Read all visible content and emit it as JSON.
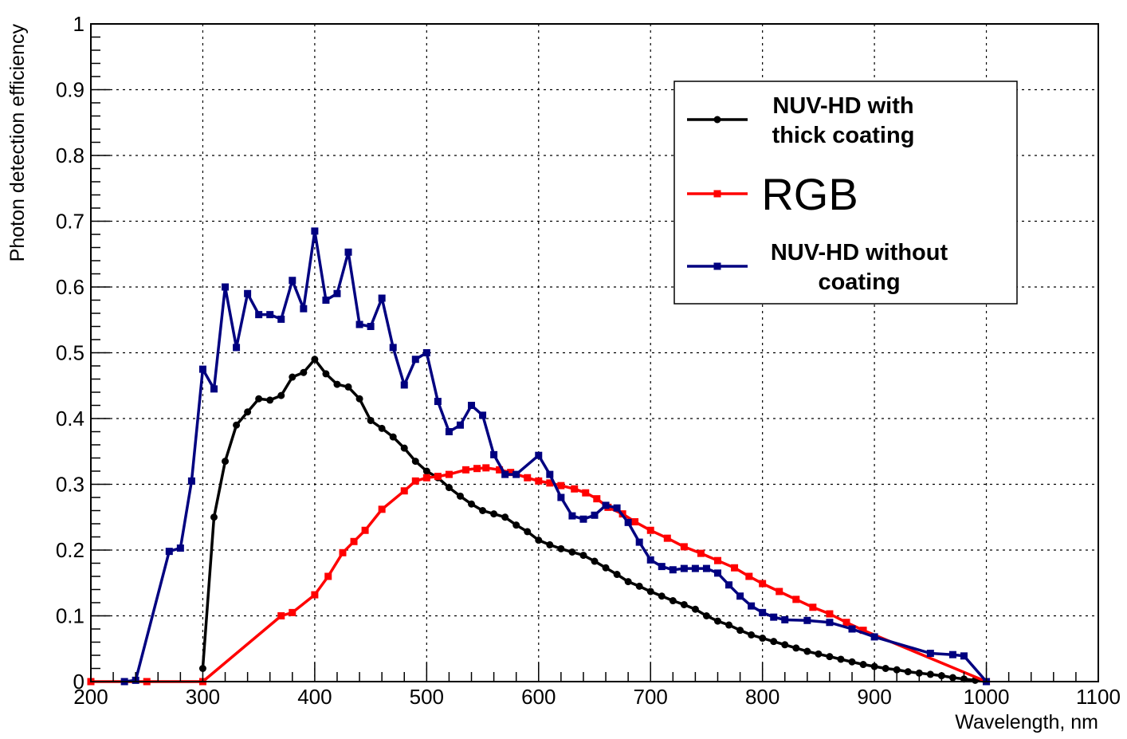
{
  "chart_data": {
    "type": "line",
    "title": "",
    "xlabel": "Wavelength, nm",
    "ylabel": "Photon detection efficiency",
    "xlim": [
      200,
      1100
    ],
    "ylim": [
      0,
      1
    ],
    "grid": true,
    "legend_position": "top-right",
    "x_ticks": [
      "200",
      "300",
      "400",
      "500",
      "600",
      "700",
      "800",
      "900",
      "1000",
      "1100"
    ],
    "y_ticks": [
      "0",
      "0.1",
      "0.2",
      "0.3",
      "0.4",
      "0.5",
      "0.6",
      "0.7",
      "0.8",
      "0.9",
      "1"
    ],
    "series": [
      {
        "name": "NUV-HD with thick coating",
        "legend_lines": [
          "NUV-HD with",
          "thick coating"
        ],
        "color": "#000000",
        "marker": "circle",
        "x": [
          300,
          310,
          320,
          330,
          340,
          350,
          360,
          370,
          380,
          390,
          400,
          410,
          420,
          430,
          440,
          450,
          460,
          470,
          480,
          490,
          500,
          510,
          520,
          530,
          540,
          550,
          560,
          570,
          580,
          590,
          600,
          610,
          620,
          630,
          640,
          650,
          660,
          670,
          680,
          690,
          700,
          710,
          720,
          730,
          740,
          750,
          760,
          770,
          780,
          790,
          800,
          810,
          820,
          830,
          840,
          850,
          860,
          870,
          880,
          890,
          900,
          910,
          920,
          930,
          940,
          950,
          960,
          970,
          980,
          990,
          1000
        ],
        "y": [
          0.02,
          0.25,
          0.335,
          0.39,
          0.41,
          0.43,
          0.428,
          0.435,
          0.463,
          0.47,
          0.49,
          0.468,
          0.452,
          0.448,
          0.43,
          0.397,
          0.385,
          0.372,
          0.355,
          0.335,
          0.32,
          0.31,
          0.295,
          0.282,
          0.27,
          0.26,
          0.255,
          0.25,
          0.238,
          0.228,
          0.215,
          0.208,
          0.202,
          0.197,
          0.192,
          0.183,
          0.173,
          0.163,
          0.152,
          0.145,
          0.137,
          0.13,
          0.123,
          0.117,
          0.11,
          0.1,
          0.092,
          0.086,
          0.078,
          0.071,
          0.066,
          0.061,
          0.056,
          0.051,
          0.046,
          0.042,
          0.038,
          0.034,
          0.03,
          0.026,
          0.023,
          0.02,
          0.018,
          0.015,
          0.013,
          0.011,
          0.009,
          0.006,
          0.004,
          0.002,
          0.0
        ]
      },
      {
        "name": "RGB",
        "legend_lines": [
          "RGB"
        ],
        "color": "#ff0000",
        "marker": "square",
        "x": [
          200,
          250,
          300,
          370,
          380,
          400,
          412,
          425,
          435,
          445,
          460,
          480,
          490,
          500,
          510,
          520,
          535,
          545,
          553,
          565,
          575,
          590,
          600,
          610,
          620,
          632,
          642,
          652,
          662,
          675,
          686,
          700,
          715,
          730,
          745,
          760,
          775,
          788,
          800,
          815,
          830,
          845,
          860,
          875,
          890,
          1000
        ],
        "y": [
          0.0,
          0.0,
          0.0,
          0.1,
          0.105,
          0.132,
          0.16,
          0.196,
          0.213,
          0.23,
          0.262,
          0.29,
          0.305,
          0.31,
          0.312,
          0.315,
          0.322,
          0.324,
          0.325,
          0.322,
          0.318,
          0.31,
          0.305,
          0.302,
          0.298,
          0.293,
          0.287,
          0.278,
          0.265,
          0.255,
          0.243,
          0.23,
          0.218,
          0.205,
          0.195,
          0.184,
          0.173,
          0.16,
          0.149,
          0.137,
          0.125,
          0.113,
          0.103,
          0.09,
          0.078,
          0.0
        ]
      },
      {
        "name": "NUV-HD without coating",
        "legend_lines": [
          "NUV-HD without",
          "coating"
        ],
        "color": "#000080",
        "marker": "square",
        "x": [
          230,
          240,
          270,
          280,
          290,
          300,
          310,
          320,
          330,
          340,
          350,
          360,
          370,
          380,
          390,
          400,
          410,
          420,
          430,
          440,
          450,
          460,
          470,
          480,
          490,
          500,
          510,
          520,
          530,
          540,
          550,
          560,
          570,
          580,
          600,
          610,
          620,
          630,
          640,
          650,
          660,
          670,
          680,
          690,
          700,
          710,
          720,
          730,
          740,
          750,
          760,
          770,
          780,
          790,
          800,
          810,
          820,
          840,
          860,
          880,
          900,
          950,
          970,
          980,
          1000
        ],
        "y": [
          0.0,
          0.002,
          0.198,
          0.203,
          0.305,
          0.475,
          0.445,
          0.6,
          0.508,
          0.59,
          0.558,
          0.558,
          0.551,
          0.61,
          0.567,
          0.685,
          0.58,
          0.59,
          0.653,
          0.543,
          0.54,
          0.583,
          0.508,
          0.451,
          0.49,
          0.5,
          0.426,
          0.38,
          0.39,
          0.42,
          0.405,
          0.345,
          0.315,
          0.315,
          0.344,
          0.315,
          0.28,
          0.252,
          0.247,
          0.253,
          0.268,
          0.264,
          0.242,
          0.212,
          0.185,
          0.175,
          0.17,
          0.172,
          0.172,
          0.172,
          0.165,
          0.147,
          0.13,
          0.115,
          0.105,
          0.098,
          0.094,
          0.093,
          0.09,
          0.08,
          0.068,
          0.043,
          0.041,
          0.039,
          0.0
        ]
      }
    ]
  }
}
